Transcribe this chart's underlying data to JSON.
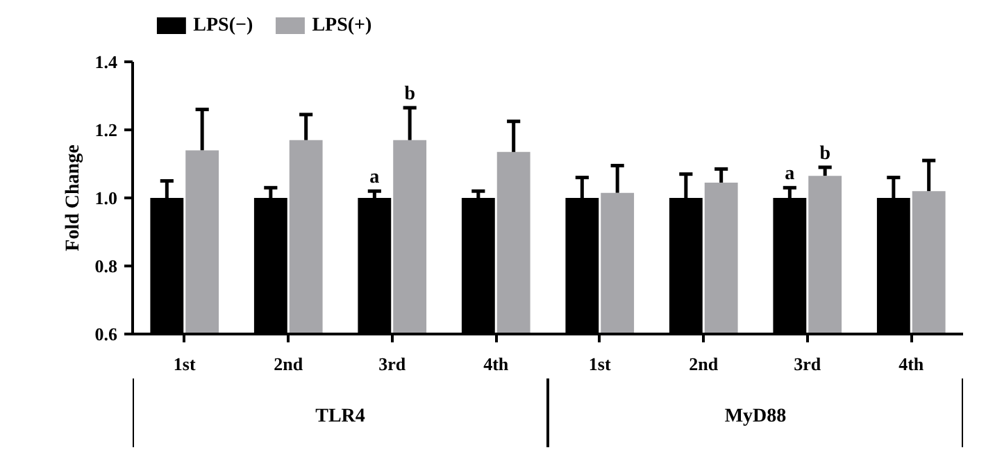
{
  "chart_data": {
    "type": "bar",
    "ylabel": "Fold Change",
    "categories": [
      "1st",
      "2nd",
      "3rd",
      "4th",
      "1st",
      "2nd",
      "3rd",
      "4th"
    ],
    "annotations": [
      "TLR4",
      "MyD88"
    ],
    "series": [
      {
        "name": "LPS(−)",
        "color": "#000000",
        "values": [
          1.0,
          1.0,
          1.0,
          1.0,
          1.0,
          1.0,
          1.0,
          1.0
        ],
        "errors": [
          [
            1.0,
            1.05
          ],
          [
            1.0,
            1.03
          ],
          [
            1.0,
            1.02
          ],
          [
            1.0,
            1.02
          ],
          [
            1.0,
            1.06
          ],
          [
            1.0,
            1.07
          ],
          [
            1.0,
            1.03
          ],
          [
            1.0,
            1.06
          ]
        ],
        "value_labels": [
          null,
          null,
          "a",
          null,
          null,
          null,
          "a",
          null
        ]
      },
      {
        "name": "LPS(+)",
        "color": "#a6a6aa",
        "values": [
          1.14,
          1.17,
          1.17,
          1.135,
          1.015,
          1.045,
          1.065,
          1.02
        ],
        "errors": [
          [
            1.14,
            1.26
          ],
          [
            1.17,
            1.245
          ],
          [
            1.17,
            1.265
          ],
          [
            1.135,
            1.225
          ],
          [
            1.015,
            1.095
          ],
          [
            1.045,
            1.085
          ],
          [
            1.065,
            1.09
          ],
          [
            1.02,
            1.11
          ]
        ],
        "value_labels": [
          null,
          null,
          "b",
          null,
          null,
          null,
          "b",
          null
        ]
      }
    ],
    "ylim": [
      0.6,
      1.4
    ],
    "yticks": [
      {
        "value": 0.6,
        "label": "0.6"
      },
      {
        "value": 0.8,
        "label": "0.8"
      },
      {
        "value": 1.0,
        "label": "1.0"
      },
      {
        "value": 1.2,
        "label": "1.2"
      },
      {
        "value": 1.4,
        "label": "1.4"
      }
    ],
    "legend": "top left",
    "grid": false
  }
}
